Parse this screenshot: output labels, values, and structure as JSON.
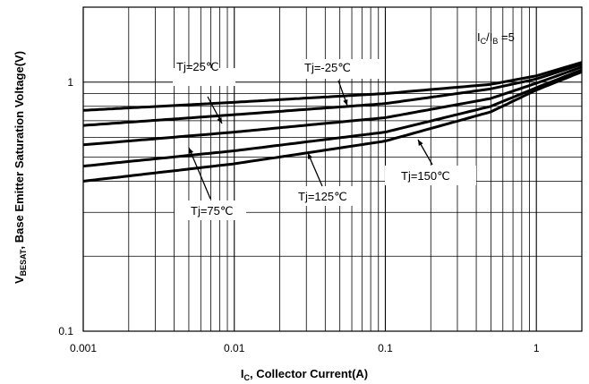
{
  "chart_data": {
    "type": "line",
    "x_scale": "log",
    "y_scale": "log",
    "xlim": [
      0.001,
      2
    ],
    "ylim": [
      0.1,
      2
    ],
    "grid": true,
    "x_ticks": [
      {
        "value": 0.001,
        "label": "0.001"
      },
      {
        "value": 0.01,
        "label": "0.01"
      },
      {
        "value": 0.1,
        "label": "0.1"
      },
      {
        "value": 1,
        "label": "1"
      }
    ],
    "y_ticks": [
      {
        "value": 1,
        "label": "1"
      },
      {
        "value": 0.1,
        "label": "0.1"
      }
    ],
    "xlabel": {
      "main": "I",
      "sub": "C",
      "rest": ", Collector Current(A)"
    },
    "ylabel": {
      "main": "V",
      "sub": "BESAT",
      "rest": ", Base Emitter Saturation Voltage(V)"
    },
    "condition": {
      "a": "I",
      "a_sub": "C",
      "sep": "/I",
      "b_sub": "B",
      "rest": " =5"
    },
    "series": [
      {
        "name": "Tj=-25℃",
        "x": [
          0.001,
          0.01,
          0.1,
          0.5,
          1,
          2
        ],
        "y": [
          0.77,
          0.83,
          0.9,
          0.98,
          1.06,
          1.2
        ]
      },
      {
        "name": "Tj=25℃",
        "x": [
          0.001,
          0.01,
          0.1,
          0.5,
          1,
          2
        ],
        "y": [
          0.67,
          0.74,
          0.82,
          0.94,
          1.03,
          1.18
        ]
      },
      {
        "name": "Tj=75℃",
        "x": [
          0.001,
          0.01,
          0.1,
          0.5,
          1,
          2
        ],
        "y": [
          0.56,
          0.63,
          0.72,
          0.86,
          0.99,
          1.15
        ]
      },
      {
        "name": "Tj=125℃",
        "x": [
          0.001,
          0.01,
          0.1,
          0.5,
          1,
          2
        ],
        "y": [
          0.46,
          0.53,
          0.63,
          0.8,
          0.95,
          1.12
        ]
      },
      {
        "name": "Tj=150℃",
        "x": [
          0.001,
          0.01,
          0.1,
          0.5,
          1,
          2
        ],
        "y": [
          0.4,
          0.47,
          0.58,
          0.76,
          0.93,
          1.1
        ]
      }
    ],
    "annotations": [
      {
        "text": "Tj=25℃",
        "series": "Tj=25℃"
      },
      {
        "text": "Tj=-25℃",
        "series": "Tj=-25℃"
      },
      {
        "text": "Tj=75℃",
        "series": "Tj=75℃"
      },
      {
        "text": "Tj=125℃",
        "series": "Tj=125℃"
      },
      {
        "text": "Tj=150℃",
        "series": "Tj=150℃"
      }
    ]
  }
}
